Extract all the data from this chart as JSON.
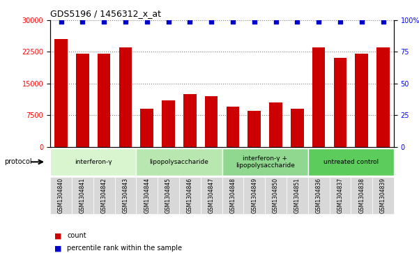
{
  "title": "GDS5196 / 1456312_x_at",
  "samples": [
    "GSM1304840",
    "GSM1304841",
    "GSM1304842",
    "GSM1304843",
    "GSM1304844",
    "GSM1304845",
    "GSM1304846",
    "GSM1304847",
    "GSM1304848",
    "GSM1304849",
    "GSM1304850",
    "GSM1304851",
    "GSM1304836",
    "GSM1304837",
    "GSM1304838",
    "GSM1304839"
  ],
  "counts": [
    25500,
    22000,
    22000,
    23500,
    9000,
    11000,
    12500,
    12000,
    9500,
    8500,
    10500,
    9000,
    23500,
    21000,
    22000,
    23500
  ],
  "percentile_ranks": [
    99,
    99,
    99,
    99,
    99,
    99,
    99,
    99,
    99,
    99,
    99,
    99,
    99,
    99,
    99,
    99
  ],
  "bar_color": "#cc0000",
  "dot_color": "#0000cc",
  "ylim_left": [
    0,
    30000
  ],
  "ylim_right": [
    0,
    100
  ],
  "yticks_left": [
    0,
    7500,
    15000,
    22500,
    30000
  ],
  "yticks_right": [
    0,
    25,
    50,
    75,
    100
  ],
  "groups": [
    {
      "label": "interferon-γ",
      "start": 0,
      "end": 4,
      "color": "#ccffcc"
    },
    {
      "label": "lipopolysaccharide",
      "start": 4,
      "end": 8,
      "color": "#99ee99"
    },
    {
      "label": "interferon-γ +\nlipopolysaccharide",
      "start": 8,
      "end": 12,
      "color": "#66dd66"
    },
    {
      "label": "untreated control",
      "start": 12,
      "end": 16,
      "color": "#33cc33"
    }
  ],
  "xlabel": "",
  "legend_count_label": "count",
  "legend_pct_label": "percentile rank within the sample",
  "protocol_label": "protocol"
}
